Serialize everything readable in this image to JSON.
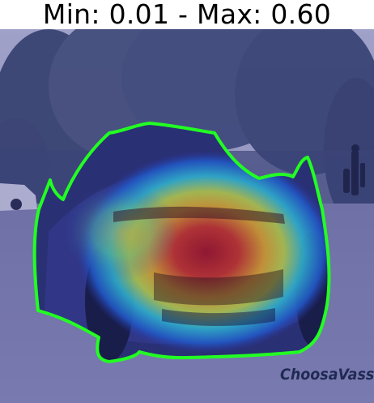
{
  "header": {
    "title": "Min: 0.01 - Max: 0.60"
  },
  "image": {
    "watermark": "ChoosaVassa",
    "subject": "car-rear-view",
    "colors": {
      "overlay_tint": "#2a2f8a",
      "contour": "#22ff22",
      "heat_high": "#c0151a",
      "heat_mid": "#f2e01c",
      "heat_low": "#1aa0e0"
    }
  }
}
